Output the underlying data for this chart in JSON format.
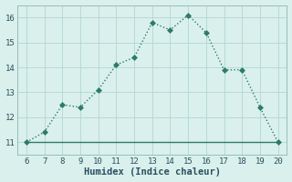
{
  "x": [
    6,
    7,
    8,
    9,
    10,
    11,
    12,
    13,
    14,
    15,
    16,
    17,
    18,
    19,
    20
  ],
  "y": [
    11,
    11.4,
    12.5,
    12.4,
    13.1,
    14.1,
    14.4,
    15.8,
    15.5,
    16.1,
    15.4,
    13.9,
    13.9,
    12.4,
    11.0
  ],
  "y_flat": [
    11,
    11,
    11,
    11,
    11,
    11,
    11,
    11,
    11,
    11,
    11,
    11,
    11,
    11,
    11
  ],
  "line_color": "#2d7a6b",
  "bg_color": "#daf0ec",
  "grid_color": "#b0d8d2",
  "spine_color": "#8ab8b0",
  "xlabel": "Humidex (Indice chaleur)",
  "xlim": [
    5.5,
    20.5
  ],
  "ylim": [
    10.5,
    16.5
  ],
  "xticks": [
    6,
    7,
    8,
    9,
    10,
    11,
    12,
    13,
    14,
    15,
    16,
    17,
    18,
    19,
    20
  ],
  "yticks": [
    11,
    12,
    13,
    14,
    15,
    16
  ],
  "font_color": "#2a5060",
  "markersize": 3,
  "linewidth": 1.0,
  "flat_linewidth": 1.0,
  "xlabel_fontsize": 7.5,
  "tick_fontsize": 6.5
}
